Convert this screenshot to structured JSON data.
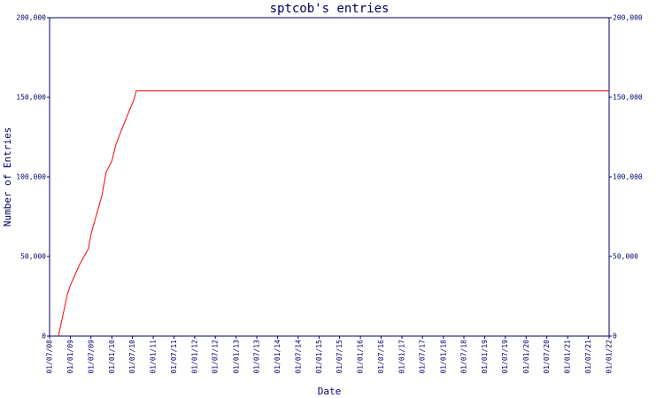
{
  "chart_data": {
    "type": "line",
    "title": "sptcob's entries",
    "x_label": "Date",
    "y_label": "Number of Entries",
    "x": [
      "2008-09-17",
      "2008-12-04",
      "2009-01-01",
      "2009-03-23",
      "2009-06-09",
      "2009-07-01",
      "2009-10-04",
      "2009-11-12",
      "2010-01-01",
      "2010-02-06",
      "2010-04-02",
      "2010-06-03",
      "2010-07-12",
      "2010-08-04",
      "2022-01-01"
    ],
    "series": [
      {
        "name": "sptcob",
        "color": "#ff0000",
        "values": [
          0,
          26000,
          32000,
          45000,
          55000,
          64000,
          88000,
          103000,
          110000,
          120500,
          130500,
          141500,
          148000,
          154000,
          154000
        ]
      }
    ],
    "xlim": [
      "2008-07-01",
      "2022-01-01"
    ],
    "xticks": [
      {
        "value": "2008-07-01",
        "label": "01/07/08"
      },
      {
        "value": "2009-01-01",
        "label": "01/01/09"
      },
      {
        "value": "2009-07-01",
        "label": "01/07/09"
      },
      {
        "value": "2010-01-01",
        "label": "01/01/10"
      },
      {
        "value": "2010-07-01",
        "label": "01/07/10"
      },
      {
        "value": "2011-01-01",
        "label": "01/01/11"
      },
      {
        "value": "2011-07-01",
        "label": "01/07/11"
      },
      {
        "value": "2012-01-01",
        "label": "01/01/12"
      },
      {
        "value": "2012-07-01",
        "label": "01/07/12"
      },
      {
        "value": "2013-01-01",
        "label": "01/01/13"
      },
      {
        "value": "2013-07-01",
        "label": "01/07/13"
      },
      {
        "value": "2014-01-01",
        "label": "01/01/14"
      },
      {
        "value": "2014-07-01",
        "label": "01/07/14"
      },
      {
        "value": "2015-01-01",
        "label": "01/01/15"
      },
      {
        "value": "2015-07-01",
        "label": "01/07/15"
      },
      {
        "value": "2016-01-01",
        "label": "01/01/16"
      },
      {
        "value": "2016-07-01",
        "label": "01/07/16"
      },
      {
        "value": "2017-01-01",
        "label": "01/01/17"
      },
      {
        "value": "2017-07-01",
        "label": "01/07/17"
      },
      {
        "value": "2018-01-01",
        "label": "01/01/18"
      },
      {
        "value": "2018-07-01",
        "label": "01/07/18"
      },
      {
        "value": "2019-01-01",
        "label": "01/01/19"
      },
      {
        "value": "2019-07-01",
        "label": "01/07/19"
      },
      {
        "value": "2020-01-01",
        "label": "01/01/20"
      },
      {
        "value": "2020-07-01",
        "label": "01/07/20"
      },
      {
        "value": "2021-01-01",
        "label": "01/01/21"
      },
      {
        "value": "2021-07-01",
        "label": "01/07/21"
      },
      {
        "value": "2022-01-01",
        "label": "01/01/22"
      }
    ],
    "ylim": [
      0,
      200000
    ],
    "yticks": [
      0,
      {
        "value": 50000,
        "label": "50,000"
      },
      {
        "value": 100000,
        "label": "100,000"
      },
      {
        "value": 150000,
        "label": "150,000"
      },
      {
        "value": 200000,
        "label": "200,000"
      }
    ],
    "grid": false
  }
}
